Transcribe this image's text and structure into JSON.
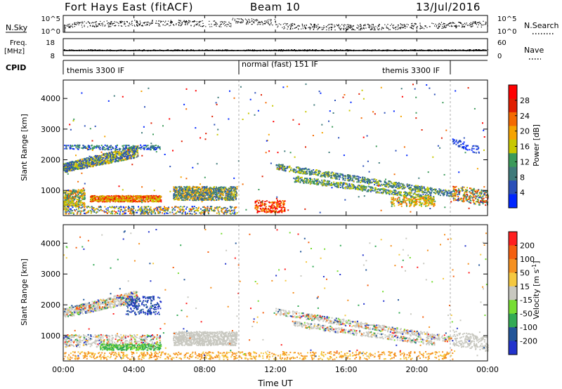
{
  "header": {
    "title": "Fort Hays East (fitACF)",
    "beam": "Beam 10",
    "date": "13/Jul/2016"
  },
  "left_labels": {
    "nsky": "N.Sky",
    "freq": "Freq.",
    "freq_unit": "[MHz]",
    "cpid": "CPID"
  },
  "right_labels": {
    "nsearch": "N.Search",
    "nave": "Nave"
  },
  "cpid_segments": [
    {
      "label": "themis 3300 IF",
      "start_hour": 0
    },
    {
      "label": "normal (fast) 151 IF",
      "start_hour": 10
    },
    {
      "label": "themis 3300 IF",
      "start_hour": 22
    }
  ],
  "chart_data": [
    {
      "type": "line",
      "name": "noise",
      "left_axis": {
        "ticks": [
          "10^5",
          "10^0"
        ]
      },
      "right_axis": {
        "ticks": [
          "10^5",
          "10^0"
        ]
      },
      "x_range_hours": [
        0,
        24
      ]
    },
    {
      "type": "line",
      "name": "freq-nave",
      "left_axis": {
        "ticks": [
          18,
          8
        ],
        "range": [
          8,
          18
        ]
      },
      "right_axis": {
        "ticks": [
          60,
          0
        ],
        "range": [
          0,
          60
        ]
      },
      "x_range_hours": [
        0,
        24
      ]
    },
    {
      "type": "heatmap",
      "name": "power",
      "ylabel": "Slant Range [km]",
      "yticks": [
        1000,
        2000,
        3000,
        4000
      ],
      "ylim": [
        180,
        4600
      ],
      "xlim_hours": [
        0,
        24
      ],
      "colorbar": {
        "label": "Power [dB]",
        "ticks": [
          4,
          8,
          12,
          16,
          20,
          24,
          28
        ],
        "colors": [
          "#0026ff",
          "#2a4fb8",
          "#3f7a7a",
          "#3c9a5a",
          "#c8c800",
          "#f5a300",
          "#f46a00",
          "#e01e00",
          "#ff0000"
        ]
      }
    },
    {
      "type": "heatmap",
      "name": "velocity",
      "ylabel": "Slant Range [km]",
      "yticks": [
        1000,
        2000,
        3000,
        4000
      ],
      "ylim": [
        180,
        4600
      ],
      "xlim_hours": [
        0,
        24
      ],
      "xlabel": "Time UT",
      "xticks": [
        "00:00",
        "04:00",
        "08:00",
        "12:00",
        "16:00",
        "20:00",
        "00:00"
      ],
      "colorbar": {
        "label": "Velocity [m s",
        "label_sup": "-1",
        "label_end": "]",
        "ticks": [
          200,
          100,
          50,
          15,
          -15,
          -50,
          -100,
          -200
        ],
        "colors": [
          "#2233cc",
          "#225599",
          "#33aa55",
          "#77dd33",
          "#c8c8c0",
          "#f5c840",
          "#f59020",
          "#f56010",
          "#ff2020"
        ]
      }
    }
  ]
}
